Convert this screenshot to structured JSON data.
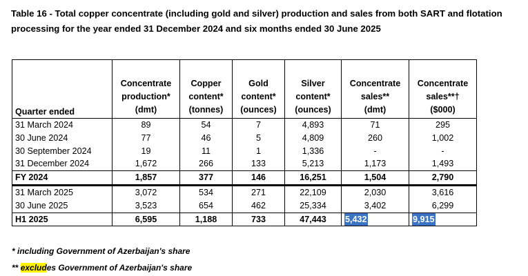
{
  "title": "Table 16 - Total copper concentrate (including gold and silver) production and sales from both SART and flotation processing for the year ended 31 December 2024 and six months ended 30 June 2025",
  "columns": {
    "quarter": "Quarter ended",
    "c1": [
      "Concentrate",
      "production*",
      "(dmt)"
    ],
    "c2": [
      "Copper",
      "content*",
      "(tonnes)"
    ],
    "c3": [
      "Gold",
      "content*",
      "(ounces)"
    ],
    "c4": [
      "Silver",
      "content*",
      "(ounces)"
    ],
    "c5": [
      "Concentrate",
      "sales**",
      "(dmt)"
    ],
    "c6": [
      "Concentrate",
      "sales**†",
      "($000)"
    ]
  },
  "rows_2024": [
    [
      "31 March 2024",
      "89",
      "54",
      "7",
      "4,893",
      "71",
      "295"
    ],
    [
      "30 June 2024",
      "77",
      "46",
      "5",
      "4,809",
      "260",
      "1,002"
    ],
    [
      "30 September 2024",
      "19",
      "11",
      "1",
      "1,336",
      "-",
      "-"
    ],
    [
      "31 December 2024",
      "1,672",
      "266",
      "133",
      "5,213",
      "1,173",
      "1,493"
    ]
  ],
  "fy_2024": [
    "FY 2024",
    "1,857",
    "377",
    "146",
    "16,251",
    "1,504",
    "2,790"
  ],
  "rows_2025": [
    [
      "31 March 2025",
      "3,072",
      "534",
      "271",
      "22,109",
      "2,030",
      "3,616"
    ],
    [
      "30 June 2025",
      "3,523",
      "654",
      "462",
      "25,334",
      "3,402",
      "6,299"
    ]
  ],
  "h1_2025": [
    "H1 2025",
    "6,595",
    "1,188",
    "733",
    "47,443",
    "5,432",
    "9,915"
  ],
  "footnote1": "* including Government of Azerbaijan's share",
  "footnote2": {
    "prefix": "** ",
    "highlight": "exclud",
    "suffix": "es Government of Azerbaijan's share"
  },
  "colors": {
    "selection": "#3a72c4",
    "text_highlight": "#fff200"
  }
}
